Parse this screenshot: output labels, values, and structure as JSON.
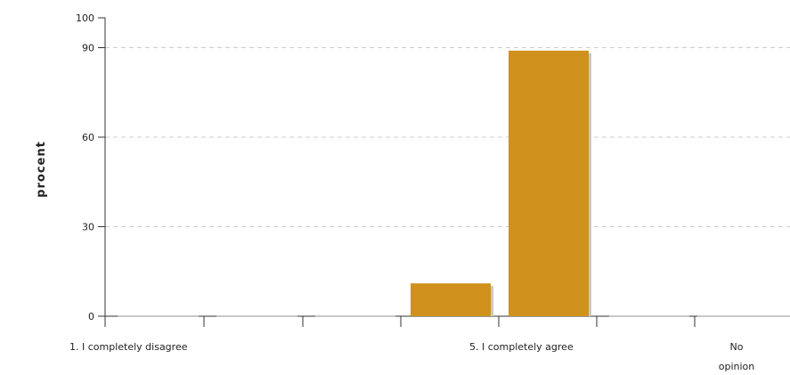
{
  "chart_data": {
    "type": "bar",
    "ylabel": "procent",
    "xlabel": "",
    "title": "",
    "ylim": [
      0,
      100
    ],
    "yticks": [
      0,
      30,
      60,
      90,
      100
    ],
    "grid": true,
    "categories": [
      "1. I completely disagree",
      "",
      "",
      "",
      "5. I completely agree",
      "No opinion"
    ],
    "category_label_lines": [
      [
        "1. I completely disagree"
      ],
      [],
      [],
      [],
      [
        "5. I completely agree"
      ],
      [
        "No",
        "opinion"
      ]
    ],
    "values": [
      0,
      0,
      0,
      11,
      89,
      0
    ],
    "bar_color": "#D0921C",
    "shadow_color": "#C8C8C8"
  }
}
